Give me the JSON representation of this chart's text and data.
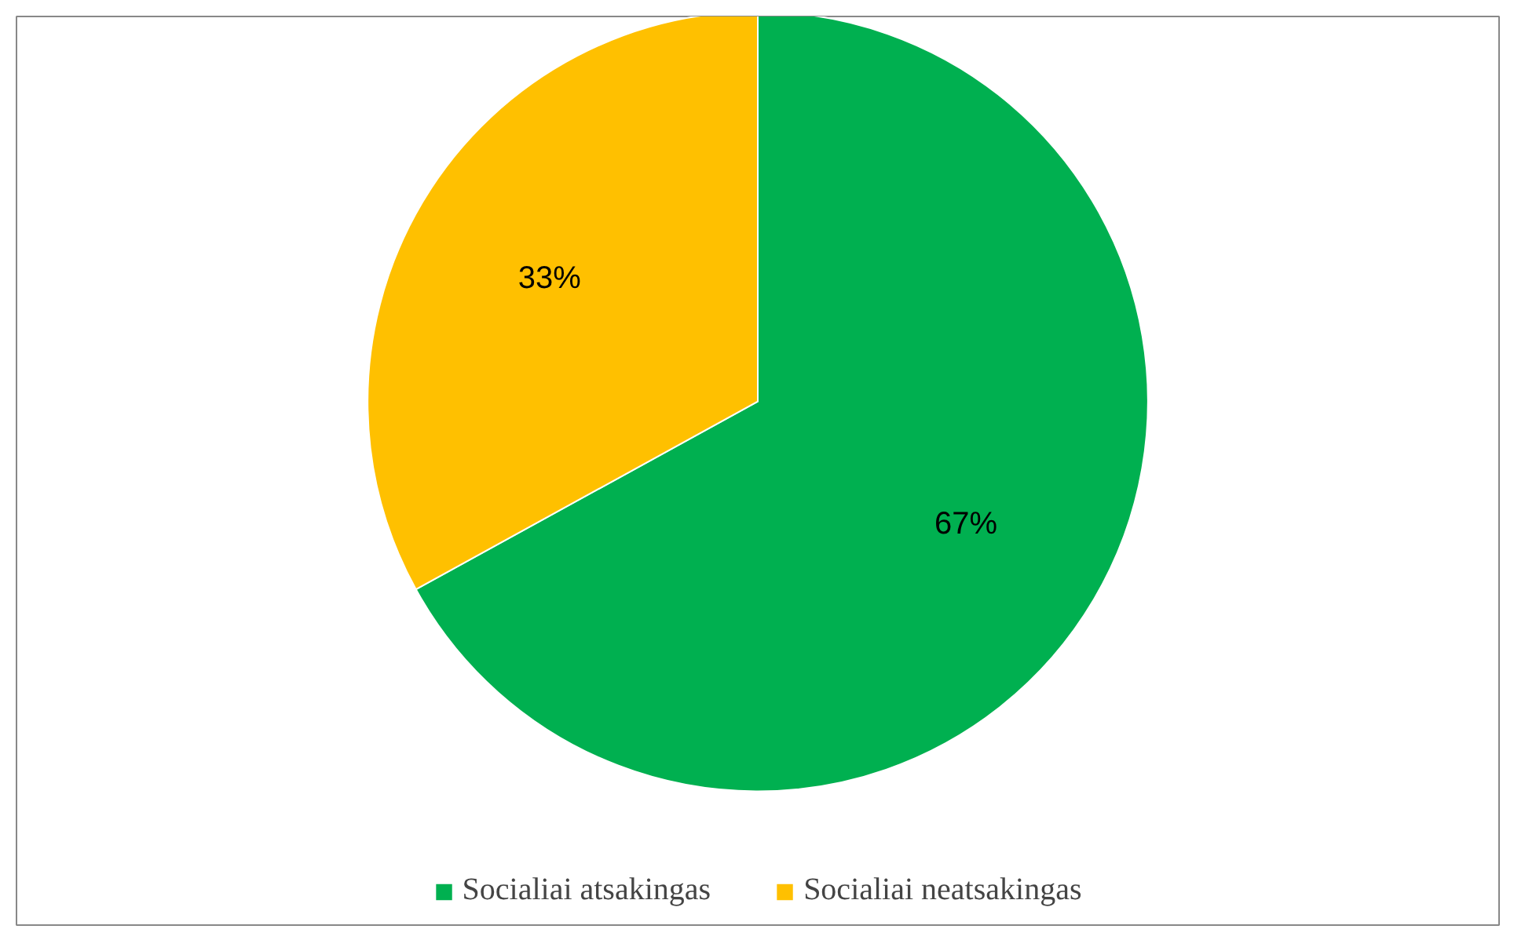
{
  "chart_data": {
    "type": "pie",
    "categories": [
      "Socialiai atsakingas",
      "Socialiai neatsakingas"
    ],
    "values": [
      67,
      33
    ],
    "colors": [
      "#00b050",
      "#ffc000"
    ],
    "value_labels": [
      "67%",
      "33%"
    ],
    "legend": "bottom"
  }
}
